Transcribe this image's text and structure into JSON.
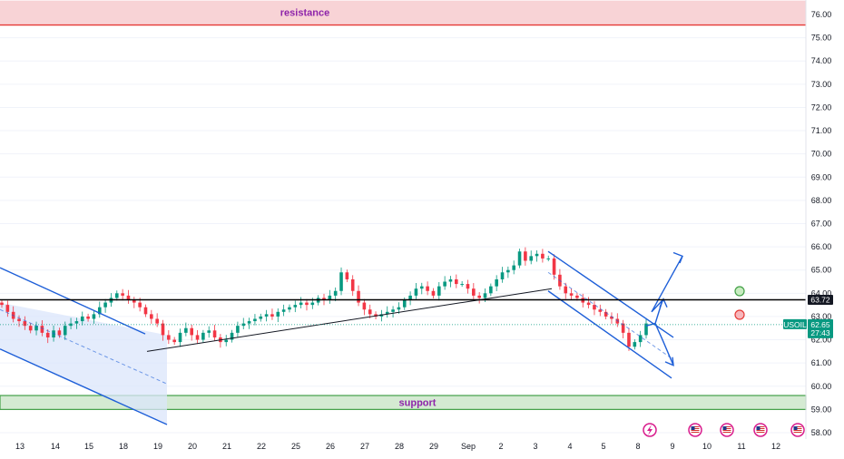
{
  "colors": {
    "up": "#089981",
    "down": "#f23645",
    "channel": "#1e5fd8",
    "resistance_fill": "#f8d3d6",
    "resistance_line": "#e53935",
    "support_fill": "#d4ead2",
    "support_line": "#43a047",
    "label": "#8e24aa",
    "axis_text": "#131722",
    "price_badge": "#089981",
    "level_badge": "#131722"
  },
  "symbol": "USOIL",
  "current_price": "62.65",
  "countdown": "27:43",
  "key_level_label": "63.72",
  "chart_data": {
    "type": "candlestick",
    "title": "",
    "ylim": [
      57.7,
      76.6
    ],
    "yticks": [
      "76.00",
      "75.00",
      "74.00",
      "73.00",
      "72.00",
      "71.00",
      "70.00",
      "69.00",
      "68.00",
      "67.00",
      "66.00",
      "65.00",
      "64.00",
      "63.00",
      "62.00",
      "61.00",
      "60.00",
      "59.00",
      "58.00"
    ],
    "xtick_labels": [
      "13",
      "14",
      "15",
      "18",
      "19",
      "20",
      "21",
      "22",
      "25",
      "26",
      "27",
      "28",
      "29",
      "Sep",
      "2",
      "3",
      "4",
      "5",
      "8",
      "9",
      "10",
      "11",
      "12"
    ],
    "key_level": 63.72,
    "last_price": 62.65,
    "resistance": {
      "label": "resistance",
      "from": 75.55,
      "to": 76.6
    },
    "support": {
      "label": "support",
      "from": 59.0,
      "to": 59.6
    },
    "trendline": {
      "from": [
        "18",
        61.5
      ],
      "to": [
        "3",
        64.2
      ]
    },
    "descending_channel_1": {
      "upper_start": [
        "13-",
        65.1
      ],
      "upper_end": [
        "18.5",
        62.25
      ],
      "lower_start": [
        "13-",
        61.6
      ],
      "lower_end": [
        "19.3",
        58.35
      ],
      "mid_end": [
        "19.3",
        60.1
      ]
    },
    "descending_channel_2": {
      "upper_start": [
        "3.4",
        65.8
      ],
      "upper_end": [
        "8.9",
        62.1
      ],
      "lower_start": [
        "3.4",
        64.1
      ],
      "lower_end": [
        "8.9",
        60.35
      ]
    },
    "projections": [
      "breakout up toward 65.6",
      "breakdown toward 60.9"
    ],
    "events": [
      "lightning icon near 8",
      "US flag icons at 10, 11, 12"
    ],
    "close_series": [
      63.5,
      63.2,
      62.9,
      62.8,
      62.6,
      62.4,
      62.6,
      62.3,
      62.1,
      62.4,
      62.2,
      62.6,
      62.7,
      62.8,
      63.0,
      62.9,
      63.1,
      63.4,
      63.6,
      63.8,
      64.0,
      63.9,
      63.7,
      63.6,
      63.4,
      63.1,
      62.9,
      62.7,
      62.2,
      62.0,
      61.9,
      62.3,
      62.5,
      62.2,
      62.0,
      62.3,
      62.4,
      62.1,
      61.9,
      62.0,
      62.3,
      62.6,
      62.7,
      62.8,
      62.9,
      63.0,
      63.1,
      63.0,
      63.2,
      63.3,
      63.4,
      63.5,
      63.6,
      63.5,
      63.6,
      63.8,
      63.7,
      63.9,
      64.1,
      64.9,
      64.6,
      64.1,
      63.6,
      63.3,
      63.1,
      63.0,
      63.1,
      63.2,
      63.3,
      63.4,
      63.7,
      63.9,
      64.2,
      64.3,
      64.1,
      63.9,
      64.3,
      64.5,
      64.6,
      64.4,
      64.4,
      64.2,
      63.9,
      63.8,
      64.0,
      64.3,
      64.6,
      64.9,
      65.0,
      65.2,
      65.8,
      65.4,
      65.6,
      65.7,
      65.5,
      65.5,
      64.8,
      64.3,
      64.0,
      63.9,
      63.8,
      63.6,
      63.5,
      63.3,
      63.2,
      63.0,
      62.9,
      62.7,
      62.3,
      61.7,
      61.9,
      62.2,
      62.7
    ]
  }
}
